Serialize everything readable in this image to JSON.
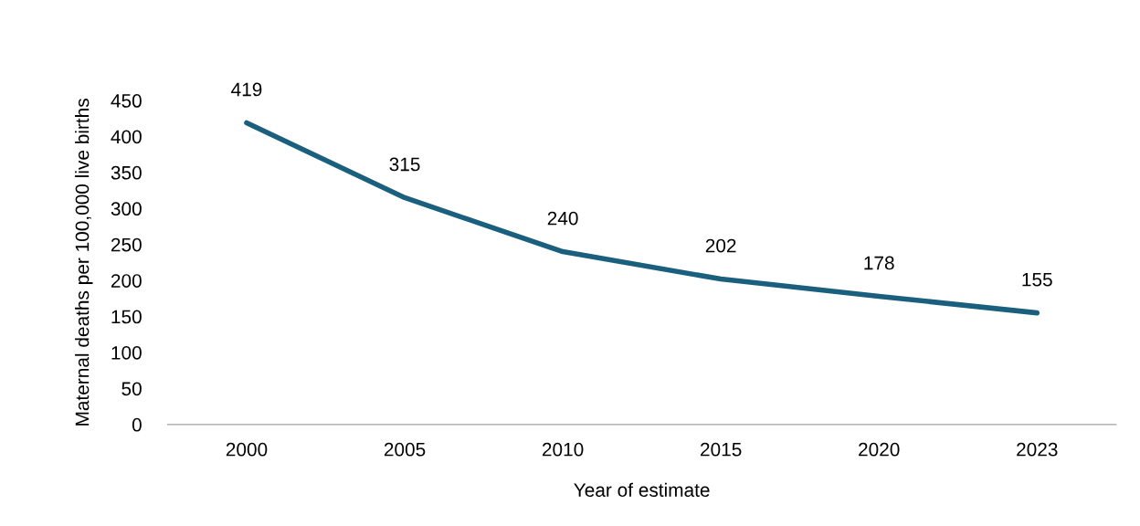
{
  "chart_data": {
    "type": "line",
    "xlabel": "Year of estimate",
    "ylabel": "Maternal deaths per 100,000 live births",
    "categories": [
      "2000",
      "2005",
      "2010",
      "2015",
      "2020",
      "2023"
    ],
    "series": [
      {
        "color": "#1b5f7f",
        "values": [
          419,
          315,
          240,
          202,
          178,
          155
        ]
      }
    ],
    "ylim": [
      0,
      450
    ],
    "yticks": [
      0,
      50,
      100,
      150,
      200,
      250,
      300,
      350,
      400,
      450
    ],
    "data_labels": true,
    "grid": false,
    "legend": false,
    "marker": "none",
    "line_style": "solid"
  }
}
